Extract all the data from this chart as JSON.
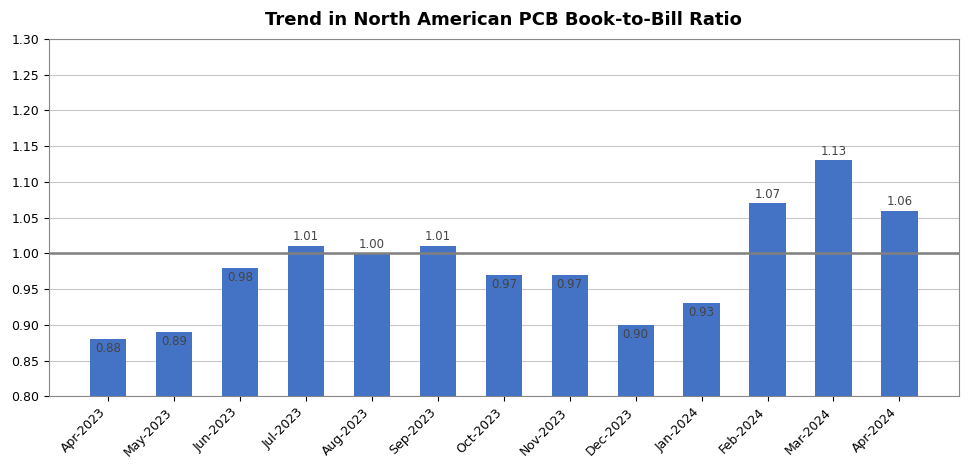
{
  "title": "Trend in North American PCB Book-to-Bill Ratio",
  "categories": [
    "Apr-2023",
    "May-2023",
    "Jun-2023",
    "Jul-2023",
    "Aug-2023",
    "Sep-2023",
    "Oct-2023",
    "Nov-2023",
    "Dec-2023",
    "Jan-2024",
    "Feb-2024",
    "Mar-2024",
    "Apr-2024"
  ],
  "values": [
    0.88,
    0.89,
    0.98,
    1.01,
    1.0,
    1.01,
    0.97,
    0.97,
    0.9,
    0.93,
    1.07,
    1.13,
    1.06
  ],
  "bar_color": "#4472C4",
  "ylim": [
    0.8,
    1.3
  ],
  "yticks": [
    0.8,
    0.85,
    0.9,
    0.95,
    1.0,
    1.05,
    1.1,
    1.15,
    1.2,
    1.25,
    1.3
  ],
  "reference_line": 1.0,
  "reference_line_color": "#808080",
  "grid_color": "#C8C8C8",
  "background_color": "#FFFFFF",
  "title_fontsize": 13,
  "tick_fontsize": 9,
  "label_fontsize": 8.5,
  "bar_bottom": 0.8
}
